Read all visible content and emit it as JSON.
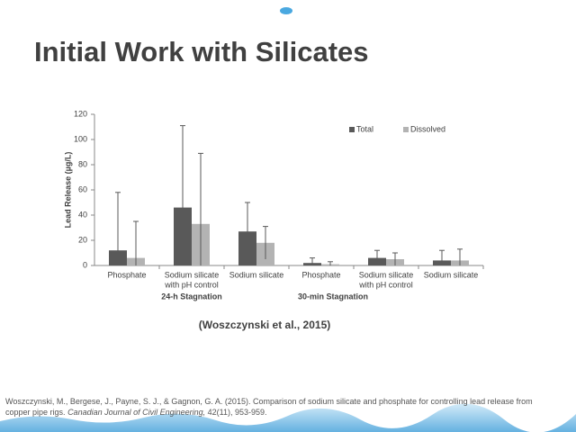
{
  "slide_title": "Initial Work with Silicates",
  "chart_data": {
    "type": "bar",
    "ylabel": "Lead Release (µg/L)",
    "categories": [
      [
        "Phosphate"
      ],
      [
        "Sodium silicate",
        "with pH control"
      ],
      [
        "Sodium silicate"
      ],
      [
        "Phosphate"
      ],
      [
        "Sodium silicate",
        "with pH control"
      ],
      [
        "Sodium silicate"
      ]
    ],
    "groups": [
      "24-h Stagnation",
      "30-min Stagnation"
    ],
    "series": [
      {
        "name": "Total",
        "color": "#595959",
        "values": [
          12,
          46,
          27,
          2,
          6,
          4
        ],
        "errors": [
          46,
          65,
          23,
          4,
          6,
          8
        ]
      },
      {
        "name": "Dissolved",
        "color": "#b3b3b3",
        "values": [
          6,
          33,
          18,
          1,
          5,
          4
        ],
        "errors": [
          29,
          56,
          13,
          2,
          5,
          9
        ]
      }
    ],
    "ylim": [
      0,
      120
    ],
    "yticks": [
      0,
      20,
      40,
      60,
      80,
      100,
      120
    ],
    "legend": "top-right"
  },
  "citation": "(Woszczynski et al., 2015)",
  "reference": {
    "part1": "Woszczynski, M., Bergese, J., Payne, S. J., & Gagnon, G. A. (2015). Comparison of sodium silicate and phosphate for controlling lead release from copper pipe rigs.",
    "journal": "Canadian Journal of Civil Engineering,",
    "part2": "42(11), 953-959."
  }
}
